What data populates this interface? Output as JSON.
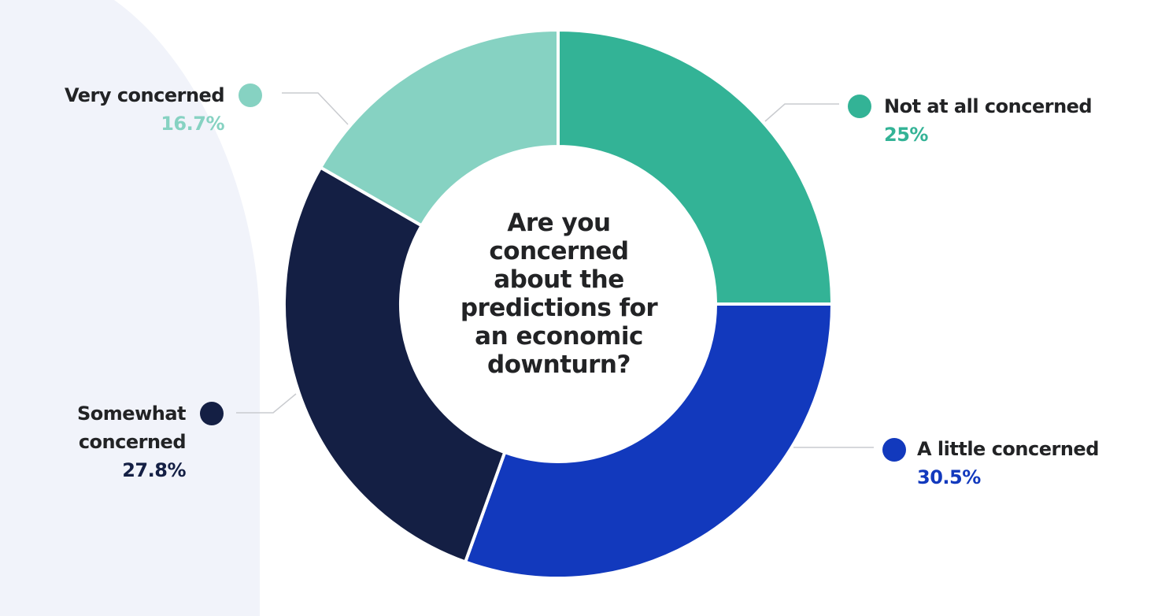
{
  "chart_data": {
    "type": "pie",
    "title": "Are you concerned about the predictions for an economic downturn?",
    "title_lines": [
      "Are you",
      "concerned",
      "about the",
      "predictions for",
      "an economic",
      "downturn?"
    ],
    "slices": [
      {
        "name": "Not at all concerned",
        "value": 25,
        "label": "25%",
        "color": "#33B396"
      },
      {
        "name": "A little concerned",
        "value": 30.5,
        "label": "30.5%",
        "color": "#1239BD"
      },
      {
        "name": "Somewhat concerned",
        "value": 27.8,
        "label": "27.8%",
        "color": "#141F44"
      },
      {
        "name": "Very concerned",
        "value": 16.7,
        "label": "16.7%",
        "color": "#86D2C2"
      }
    ]
  },
  "background": {
    "panel_color": "#F1F3FA"
  },
  "leader_color": "#C9CBCF"
}
